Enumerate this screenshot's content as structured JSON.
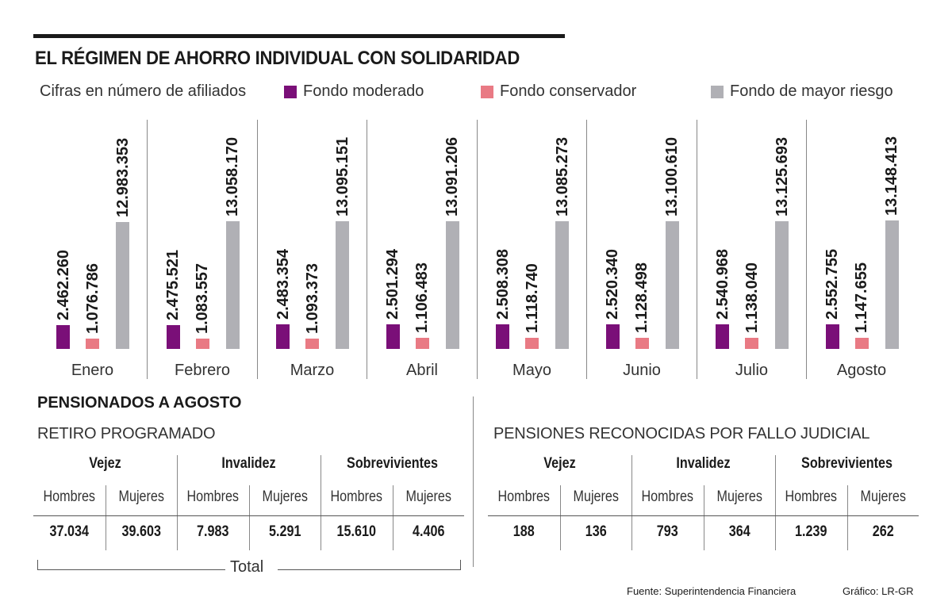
{
  "title": "EL RÉGIMEN DE AHORRO INDIVIDUAL CON SOLIDARIDAD",
  "subtitle": "Cifras en número de afiliados",
  "chart_data": {
    "type": "bar",
    "title": "EL RÉGIMEN DE AHORRO INDIVIDUAL CON SOLIDARIDAD",
    "subtitle": "Cifras en número de afiliados",
    "legend_placement": "top",
    "grid": false,
    "categories": [
      "Enero",
      "Febrero",
      "Marzo",
      "Abril",
      "Mayo",
      "Junio",
      "Julio",
      "Agosto"
    ],
    "series": [
      {
        "name": "Fondo moderado",
        "color": "#7a0f78",
        "values": [
          2462260,
          2475521,
          2483354,
          2501294,
          2508308,
          2520340,
          2540968,
          2552755
        ],
        "labels": [
          "2.462.260",
          "2.475.521",
          "2.483.354",
          "2.501.294",
          "2.508.308",
          "2.520.340",
          "2.540.968",
          "2.552.755"
        ]
      },
      {
        "name": "Fondo conservador",
        "color": "#e97a84",
        "values": [
          1076786,
          1083557,
          1093373,
          1106483,
          1118740,
          1128498,
          1138040,
          1147655
        ],
        "labels": [
          "1.076.786",
          "1.083.557",
          "1.093.373",
          "1.106.483",
          "1.118.740",
          "1.128.498",
          "1.138.040",
          "1.147.655"
        ]
      },
      {
        "name": "Fondo de mayor riesgo",
        "color": "#b0b0b5",
        "values": [
          12983353,
          13058170,
          13095151,
          13091206,
          13085273,
          13100610,
          13125693,
          13148413
        ],
        "labels": [
          "12.983.353",
          "13.058.170",
          "13.095.151",
          "13.091.206",
          "13.085.273",
          "13.100.610",
          "13.125.693",
          "13.148.413"
        ]
      }
    ]
  },
  "pensionados": {
    "title": "PENSIONADOS A AGOSTO",
    "retiro": {
      "title": "RETIRO PROGRAMADO",
      "groups": [
        "Vejez",
        "Invalidez",
        "Sobrevivientes"
      ],
      "sub": [
        "Hombres",
        "Mujeres",
        "Hombres",
        "Mujeres",
        "Hombres",
        "Mujeres"
      ],
      "values": [
        "37.034",
        "39.603",
        "7.983",
        "5.291",
        "15.610",
        "4.406"
      ],
      "total_label": "Total"
    },
    "fallo": {
      "title": "PENSIONES RECONOCIDAS POR FALLO JUDICIAL",
      "groups": [
        "Vejez",
        "Invalidez",
        "Sobrevivientes"
      ],
      "sub": [
        "Hombres",
        "Mujeres",
        "Hombres",
        "Mujeres",
        "Hombres",
        "Mujeres"
      ],
      "values": [
        "188",
        "136",
        "793",
        "364",
        "1.239",
        "262"
      ]
    }
  },
  "source": "Fuente: Superintendencia Financiera",
  "credit": "Gráfico: LR-GR"
}
